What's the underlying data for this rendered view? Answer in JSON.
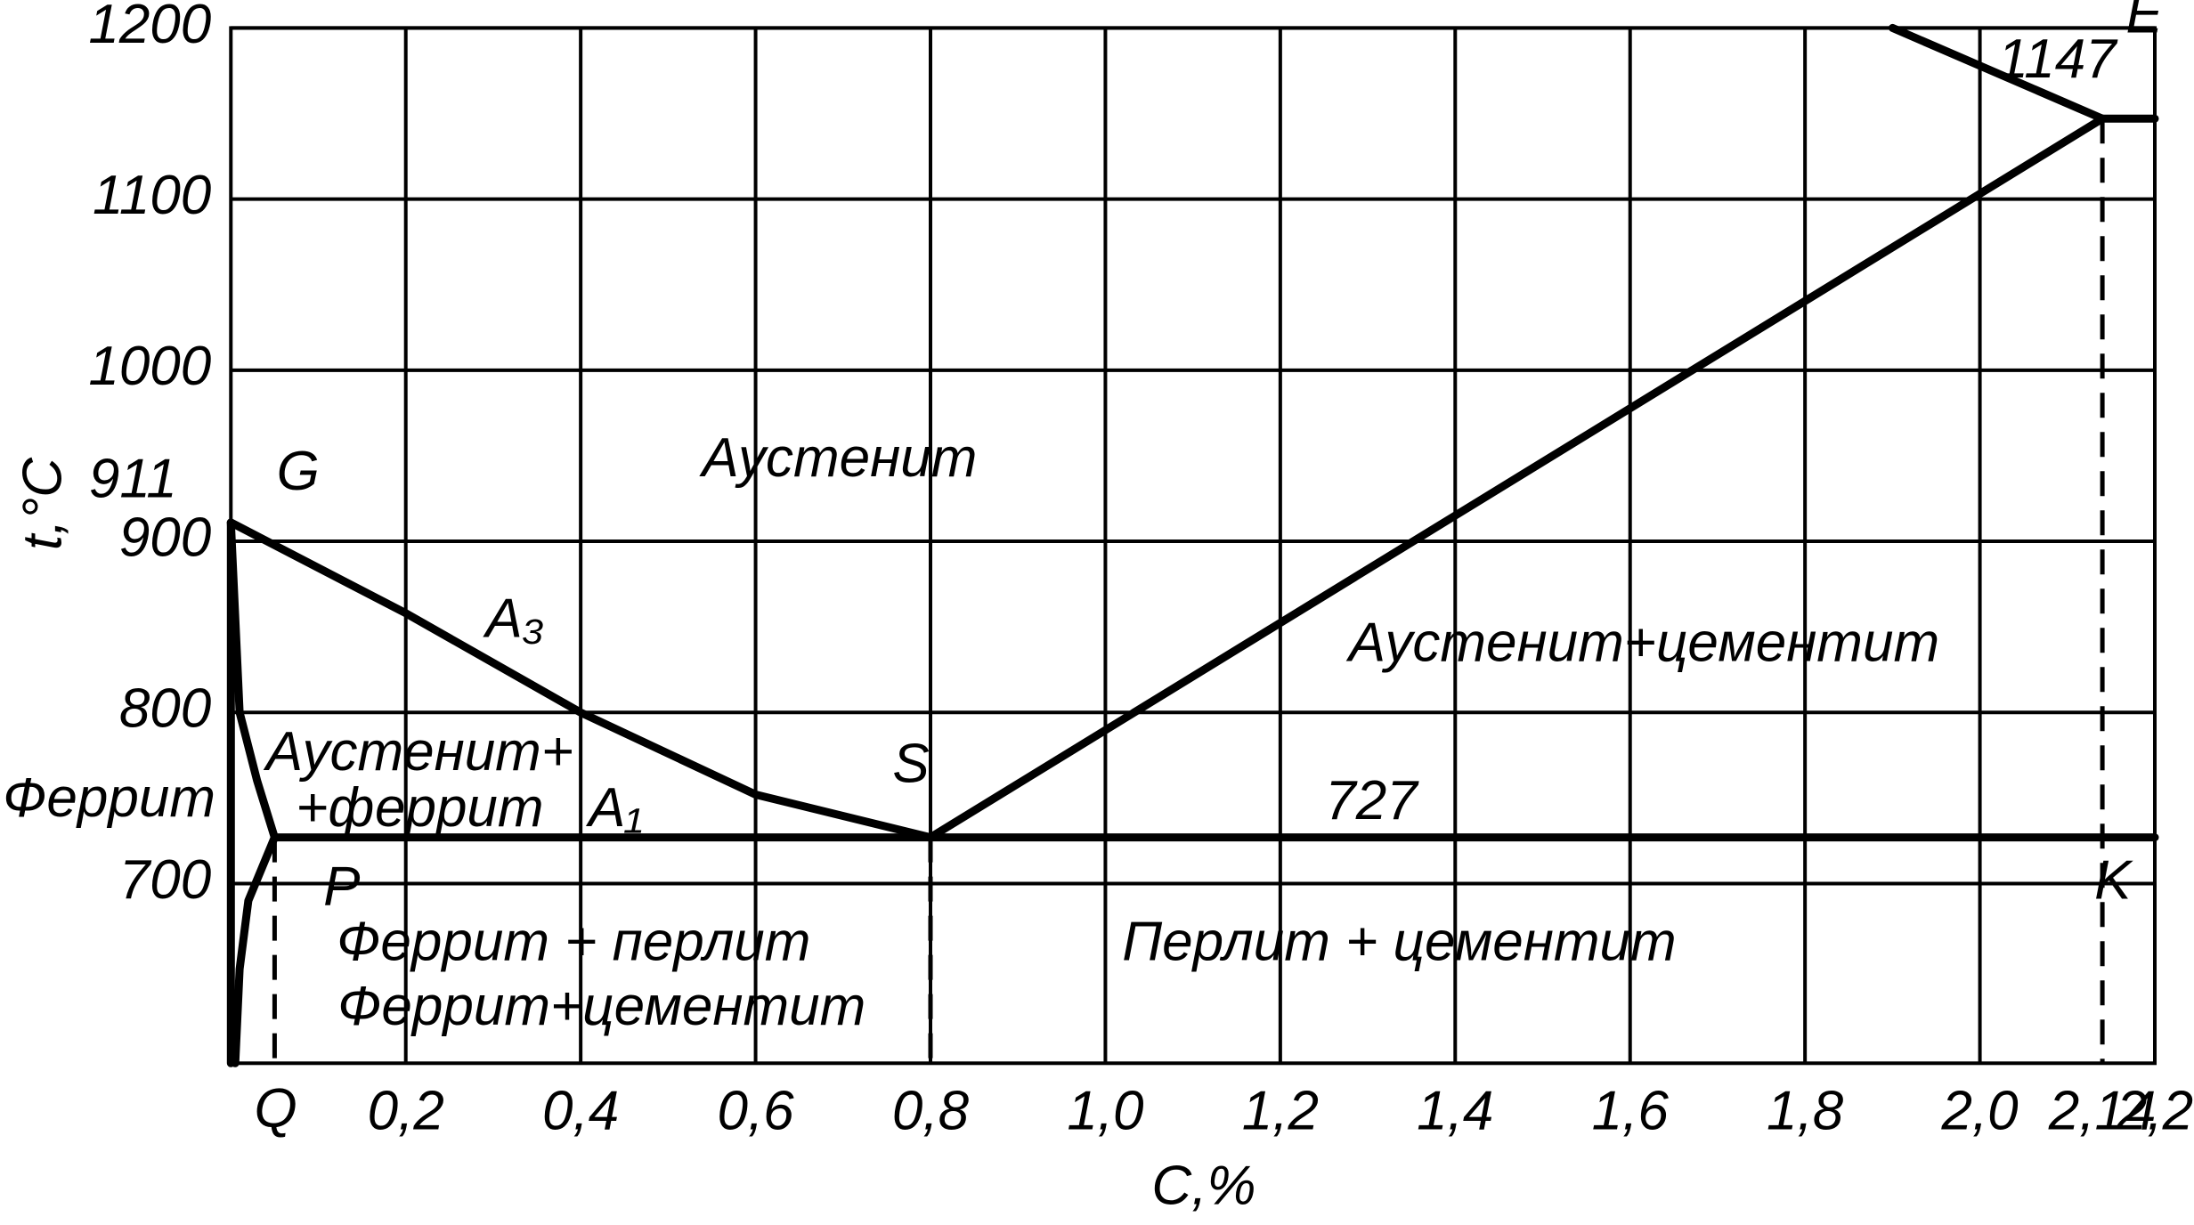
{
  "chart_data": {
    "type": "phase-diagram",
    "xlabel": "C,%",
    "ylabel": "t,°C",
    "xlim": [
      0,
      2.2
    ],
    "ylim": [
      595,
      1200
    ],
    "xticks": [
      {
        "value": 0.2,
        "label": "0,2"
      },
      {
        "value": 0.4,
        "label": "0,4"
      },
      {
        "value": 0.6,
        "label": "0,6"
      },
      {
        "value": 0.8,
        "label": "0,8"
      },
      {
        "value": 1.0,
        "label": "1,0"
      },
      {
        "value": 1.2,
        "label": "1,2"
      },
      {
        "value": 1.4,
        "label": "1,4"
      },
      {
        "value": 1.6,
        "label": "1,6"
      },
      {
        "value": 1.8,
        "label": "1,8"
      },
      {
        "value": 2.0,
        "label": "2,0"
      },
      {
        "value": 2.14,
        "label": "2,14"
      },
      {
        "value": 2.2,
        "label": "2,2"
      }
    ],
    "yticks": [
      700,
      800,
      900,
      1000,
      1100,
      1200
    ],
    "grid": true,
    "color": "#000000",
    "points": [
      {
        "label": "G",
        "x": 0,
        "y": 911
      },
      {
        "label": "S",
        "x": 0.8,
        "y": 727
      },
      {
        "label": "E",
        "x": 2.14,
        "y": 1147
      },
      {
        "label": "P",
        "x": 0.05,
        "y": 727
      }
    ],
    "lines": [
      {
        "x": [
          0,
          0
        ],
        "values": [
          911,
          595
        ]
      },
      {
        "x": [
          0,
          0.2,
          0.4,
          0.6,
          0.8
        ],
        "values": [
          911,
          858,
          800,
          752,
          727
        ]
      },
      {
        "x": [
          0.8,
          2.14
        ],
        "values": [
          727,
          1147
        ]
      },
      {
        "x": [
          1.9,
          2.14
        ],
        "values": [
          1200,
          1147
        ]
      },
      {
        "x": [
          2.14,
          2.2
        ],
        "values": [
          1147,
          1147
        ]
      },
      {
        "x": [
          0.05,
          2.2
        ],
        "values": [
          727,
          727
        ]
      },
      {
        "x": [
          0,
          0.01,
          0.03,
          0.05
        ],
        "values": [
          911,
          800,
          760,
          727
        ]
      },
      {
        "x": [
          0.05,
          0.02,
          0.01,
          0.005
        ],
        "values": [
          727,
          690,
          650,
          595
        ]
      }
    ],
    "dashed_lines": [
      {
        "x": [
          0.05,
          0.05
        ],
        "values": [
          727,
          595
        ]
      },
      {
        "x": [
          0.8,
          0.8
        ],
        "values": [
          727,
          595
        ]
      },
      {
        "x": [
          2.14,
          2.14
        ],
        "values": [
          1147,
          595
        ]
      }
    ],
    "labels": [
      "Аустенит",
      "Аустенит+цементит",
      "Аустенит+",
      "+феррит",
      "Феррит",
      "Феррит + перлит",
      "Феррит+цементит",
      "Перлит + цементит",
      "A₃",
      "A₁",
      "K",
      "Q"
    ]
  }
}
